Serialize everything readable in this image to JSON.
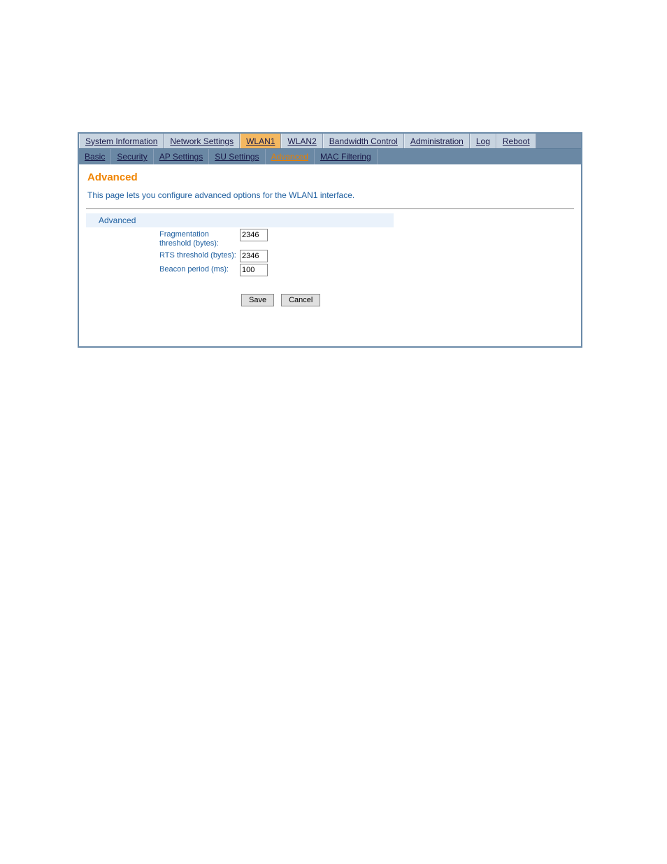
{
  "main_tabs": {
    "items": [
      {
        "label": "System Information",
        "active": false
      },
      {
        "label": "Network Settings",
        "active": false
      },
      {
        "label": "WLAN1",
        "active": true
      },
      {
        "label": "WLAN2",
        "active": false
      },
      {
        "label": "Bandwidth Control",
        "active": false
      },
      {
        "label": "Administration",
        "active": false
      },
      {
        "label": "Log",
        "active": false
      },
      {
        "label": "Reboot",
        "active": false
      }
    ]
  },
  "sub_tabs": {
    "items": [
      {
        "label": "Basic",
        "active": false
      },
      {
        "label": "Security",
        "active": false
      },
      {
        "label": "AP Settings",
        "active": false
      },
      {
        "label": "SU Settings",
        "active": false
      },
      {
        "label": "Advanced",
        "active": true
      },
      {
        "label": "MAC Filtering",
        "active": false
      }
    ]
  },
  "page": {
    "title": "Advanced",
    "description": "This page lets you configure advanced options for the WLAN1 interface."
  },
  "section": {
    "header": "Advanced"
  },
  "form": {
    "frag_label": "Fragmentation threshold (bytes):",
    "frag_value": "2346",
    "rts_label": "RTS threshold (bytes):",
    "rts_value": "2346",
    "beacon_label": "Beacon period (ms):",
    "beacon_value": "100"
  },
  "buttons": {
    "save": "Save",
    "cancel": "Cancel"
  },
  "colors": {
    "panel_border": "#6a8aa8",
    "main_tab_bg": "#c8d4e0",
    "main_tab_active_bg": "#f4b860",
    "sub_tabs_bg": "#6a88a4",
    "title_color": "#f08400",
    "text_blue": "#2060a0",
    "section_bg": "#eaf2fb",
    "button_bg": "#e0e0e0"
  }
}
